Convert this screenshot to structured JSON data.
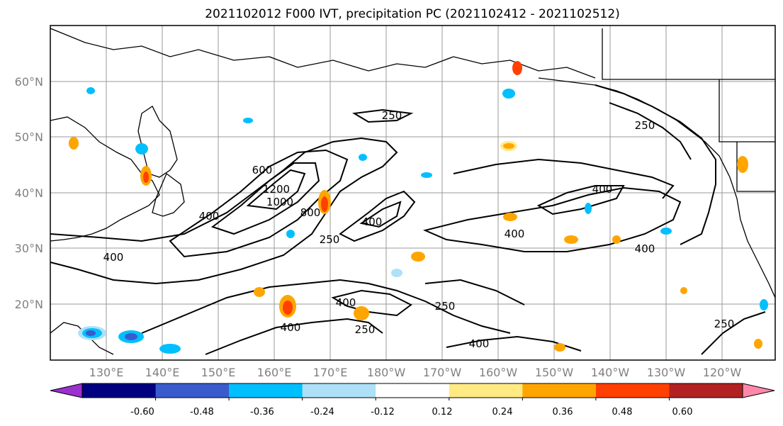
{
  "title": "2021102012 F000 IVT, precipitation PC (2021102412 - 2021102512)",
  "lat_labels": [
    "60°N",
    "50°N",
    "40°N",
    "30°N",
    "20°N"
  ],
  "lon_labels": [
    "130°E",
    "140°E",
    "150°E",
    "160°E",
    "170°E",
    "180°W",
    "170°W",
    "160°W",
    "150°W",
    "140°W",
    "130°W",
    "120°W"
  ],
  "contour_labels": [
    "250",
    "250",
    "250",
    "250",
    "250",
    "250",
    "400",
    "400",
    "400",
    "400",
    "400",
    "400",
    "400",
    "400",
    "400",
    "600",
    "800",
    "1000",
    "1200"
  ],
  "colorbar": {
    "ticks": [
      "-0.60",
      "-0.48",
      "-0.36",
      "-0.24",
      "-0.12",
      "0.12",
      "0.24",
      "0.36",
      "0.48",
      "0.60"
    ],
    "colors": [
      "#9b30d0",
      "#000080",
      "#3a5bcc",
      "#00bfff",
      "#aee1f7",
      "#ffffff",
      "#ffea84",
      "#ffa500",
      "#ff4000",
      "#b22222",
      "#ff88aa"
    ]
  }
}
